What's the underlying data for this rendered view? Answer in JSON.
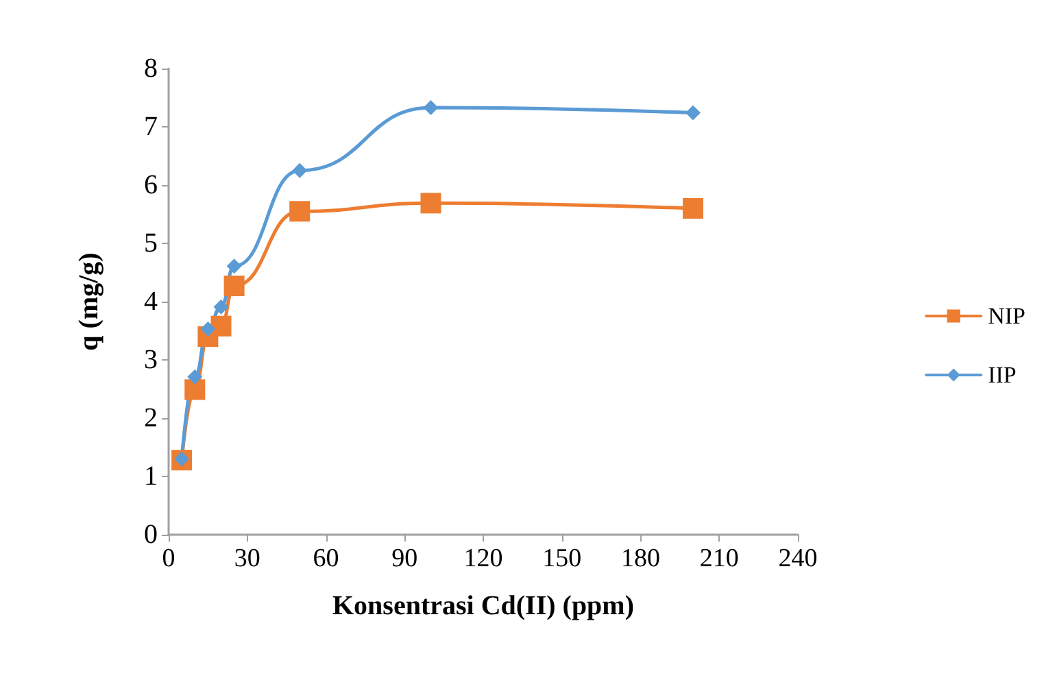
{
  "chart_data": {
    "type": "line",
    "xlabel": "Konsentrasi Cd(II) (ppm)",
    "ylabel": "q (mg/g)",
    "x": [
      5,
      10,
      15,
      20,
      25,
      50,
      100,
      200
    ],
    "series": [
      {
        "name": "NIP",
        "color": "#ed7d31",
        "marker": "square",
        "values": [
          1.28,
          2.49,
          3.4,
          3.58,
          4.27,
          5.55,
          5.69,
          5.6
        ]
      },
      {
        "name": "IIP",
        "color": "#5b9bd5",
        "marker": "diamond",
        "values": [
          1.3,
          2.71,
          3.53,
          3.91,
          4.61,
          6.25,
          7.33,
          7.24
        ]
      }
    ],
    "xlim": [
      0,
      240
    ],
    "xticks": [
      0,
      30,
      60,
      90,
      120,
      150,
      180,
      210,
      240
    ],
    "ylim": [
      0,
      8
    ],
    "yticks": [
      0,
      1,
      2,
      3,
      4,
      5,
      6,
      7,
      8
    ],
    "grid": false,
    "legend": "right",
    "line_style": "solid"
  }
}
